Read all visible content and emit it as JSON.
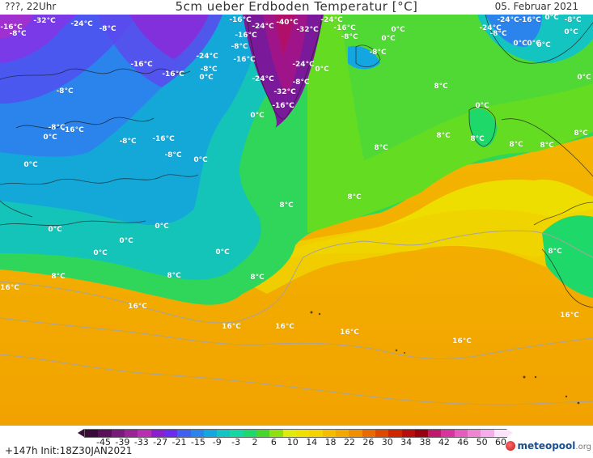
{
  "header": {
    "left": "???, 22Uhr",
    "title": "5cm ueber Erdboden Temperatur [°C]",
    "right": "05. Februar 2021"
  },
  "map": {
    "region": "North Atlantic / Greenland / Western Europe",
    "labels": [
      {
        "text": "-32°C"
      },
      {
        "text": "-24°C"
      },
      {
        "text": "-8°C"
      },
      {
        "text": "-16°C"
      },
      {
        "text": "-24°C"
      },
      {
        "text": "-40°C"
      },
      {
        "text": "-24°C"
      },
      {
        "text": "-32°C"
      },
      {
        "text": "-16°C"
      },
      {
        "text": "-8°C"
      },
      {
        "text": "0°C"
      },
      {
        "text": "-16°C"
      },
      {
        "text": "-24°C"
      },
      {
        "text": "-8°C"
      },
      {
        "text": "0°C"
      },
      {
        "text": "-8°C"
      },
      {
        "text": "-16°C"
      },
      {
        "text": "-24°C"
      },
      {
        "text": "-16°C"
      },
      {
        "text": "-16°C"
      },
      {
        "text": "-24°C"
      },
      {
        "text": "-8°C"
      },
      {
        "text": "0°C"
      },
      {
        "text": "-24°C"
      },
      {
        "text": "-32°C"
      },
      {
        "text": "-16°C"
      },
      {
        "text": "-8°C"
      },
      {
        "text": "0°C"
      },
      {
        "text": "-8°C"
      },
      {
        "text": "0°C"
      },
      {
        "text": "0°C"
      },
      {
        "text": "0°C"
      },
      {
        "text": "-16°C"
      },
      {
        "text": "-8°C"
      },
      {
        "text": "-24°C"
      },
      {
        "text": "-8°C"
      },
      {
        "text": "-16°C"
      },
      {
        "text": "0°C"
      },
      {
        "text": "-8°C"
      },
      {
        "text": "0°C"
      },
      {
        "text": "0°C"
      },
      {
        "text": "-16°C"
      },
      {
        "text": "-8°C"
      },
      {
        "text": "-8°C"
      },
      {
        "text": "0°C"
      },
      {
        "text": "-16°C"
      },
      {
        "text": "-8°C"
      },
      {
        "text": "0°C"
      },
      {
        "text": "0°C"
      },
      {
        "text": "8°C"
      },
      {
        "text": "8°C"
      },
      {
        "text": "8°C"
      },
      {
        "text": "8°C"
      },
      {
        "text": "0°C"
      },
      {
        "text": "0°C"
      },
      {
        "text": "0°C"
      },
      {
        "text": "0°C"
      },
      {
        "text": "0°C"
      },
      {
        "text": "8°C"
      },
      {
        "text": "8°C"
      },
      {
        "text": "16°C"
      },
      {
        "text": "16°C"
      },
      {
        "text": "16°C"
      },
      {
        "text": "16°C"
      },
      {
        "text": "16°C"
      },
      {
        "text": "16°C"
      },
      {
        "text": "16°C"
      },
      {
        "text": "8°C"
      },
      {
        "text": "8°C"
      },
      {
        "text": "8°C"
      },
      {
        "text": "8°C"
      },
      {
        "text": "8°C"
      },
      {
        "text": "8°C"
      },
      {
        "text": "8°C"
      },
      {
        "text": "0°C"
      },
      {
        "text": "0°C"
      }
    ]
  },
  "legend": {
    "ticks": [
      "-45",
      "-39",
      "-33",
      "-27",
      "-21",
      "-15",
      "-9",
      "-3",
      "2",
      "6",
      "10",
      "14",
      "18",
      "22",
      "26",
      "30",
      "34",
      "38",
      "42",
      "46",
      "50",
      "60"
    ],
    "colors": [
      "#3a0a3a",
      "#5a0f5a",
      "#7a1a7a",
      "#9a2496",
      "#b92fb2",
      "#8a1fd0",
      "#6a2df0",
      "#4060f0",
      "#2a84ec",
      "#14a6e0",
      "#12c4c4",
      "#14d7a2",
      "#1fd86a",
      "#48d62a",
      "#8ee00e",
      "#ddec0e",
      "#f0e000",
      "#f5d200",
      "#f4bd00",
      "#f2a800",
      "#ef8f00",
      "#e86a00",
      "#de4800",
      "#cf2600",
      "#b80d0d",
      "#990010",
      "#c0186a",
      "#d9349e",
      "#e75bbe",
      "#ef84d2",
      "#f5acea",
      "#fbe4f9"
    ]
  },
  "footer": {
    "run_info": "+147h  Init:18Z30JAN2021",
    "brand": "meteopool",
    "tld": ".org"
  }
}
